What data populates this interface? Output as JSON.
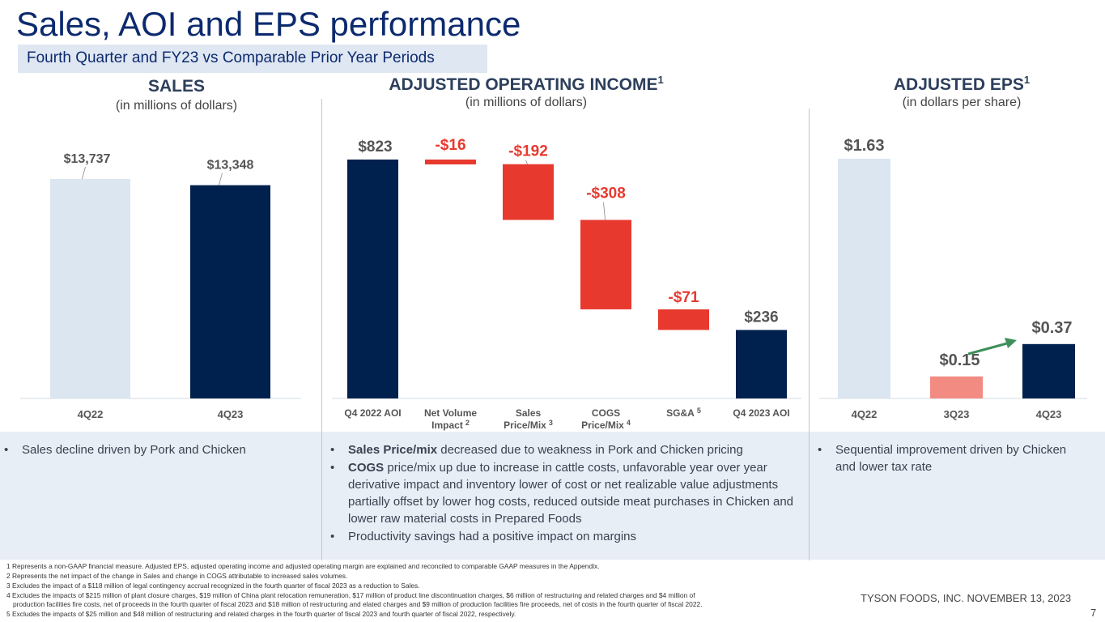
{
  "title": "Sales, AOI and EPS performance",
  "subtitle": "Fourth Quarter and FY23 vs Comparable Prior Year Periods",
  "colors": {
    "navy": "#00204e",
    "light_blue": "#dce6f1",
    "red": "#e8392f",
    "salmon": "#f28b82",
    "arrow_green": "#3f8f5a"
  },
  "panels": {
    "sales": {
      "heading": "SALES",
      "unit": "(in millions of dollars)"
    },
    "aoi": {
      "heading": "ADJUSTED OPERATING INCOME",
      "heading_sup": "1",
      "unit": "(in millions of dollars)"
    },
    "eps": {
      "heading": "ADJUSTED EPS",
      "heading_sup": "1",
      "unit": "(in dollars per share)"
    }
  },
  "chart_data": [
    {
      "type": "bar",
      "categories": [
        "4Q22",
        "4Q23"
      ],
      "values": [
        13737,
        13348
      ],
      "labels": [
        "$13,737",
        "$13,348"
      ],
      "colors": [
        "#dce6f1",
        "#00204e"
      ]
    },
    {
      "type": "waterfall",
      "categories": [
        {
          "line1": "Q4 2022 AOI",
          "line2": "",
          "sup": ""
        },
        {
          "line1": "Net Volume",
          "line2": "Impact",
          "sup": "2"
        },
        {
          "line1": "Sales",
          "line2": "Price/Mix",
          "sup": "3"
        },
        {
          "line1": "COGS",
          "line2": "Price/Mix",
          "sup": "4"
        },
        {
          "line1": "SG&A",
          "line2": "",
          "sup": "5"
        },
        {
          "line1": "Q4 2023 AOI",
          "line2": "",
          "sup": ""
        }
      ],
      "values": [
        823,
        -16,
        -192,
        -308,
        -71,
        236
      ],
      "labels": [
        "$823",
        "-$16",
        "-$192",
        "-$308",
        "-$71",
        "$236"
      ],
      "kinds": [
        "total",
        "delta",
        "delta",
        "delta",
        "delta",
        "total"
      ]
    },
    {
      "type": "bar",
      "categories": [
        "4Q22",
        "3Q23",
        "4Q23"
      ],
      "values": [
        1.63,
        0.15,
        0.37
      ],
      "labels": [
        "$1.63",
        "$0.15",
        "$0.37"
      ],
      "colors": [
        "#dce6f1",
        "#f28b82",
        "#00204e"
      ]
    }
  ],
  "bullets": {
    "sales": [
      {
        "bold": "",
        "text": "Sales decline driven by Pork and Chicken"
      }
    ],
    "aoi": [
      {
        "bold": "Sales Price/mix",
        "text": " decreased due to weakness in Pork and Chicken pricing"
      },
      {
        "bold": "COGS",
        "text": " price/mix up due to increase in cattle costs, unfavorable year over year derivative impact and inventory lower of cost or net realizable value adjustments partially offset by lower hog costs, reduced outside meat purchases in Chicken and lower raw material costs in Prepared Foods"
      },
      {
        "bold": "",
        "text": "Productivity savings had a positive impact on margins"
      }
    ],
    "eps": [
      {
        "bold": "",
        "text": "Sequential improvement driven by Chicken and lower tax rate"
      }
    ]
  },
  "bullet_symbol": "•",
  "footnotes": [
    "1 Represents a non-GAAP financial measure. Adjusted EPS, adjusted operating income and adjusted operating margin are explained and reconciled to comparable GAAP measures in the Appendix.",
    "2 Represents the net impact of the change in Sales and change in COGS attributable to increased sales volumes.",
    "3 Excludes the impact of a $118 million of legal contingency accrual recognized in the fourth quarter of fiscal 2023 as a reduction to Sales.",
    "4 Excludes the impacts of $215 million of plant closure charges, $19 million of China plant relocation remuneration, $17 million of product line discontinuation charges, $6 million of restructuring and related charges and $4 million of",
    "production facilities fire costs, net of proceeds in the fourth quarter of fiscal 2023 and $18 million of restructuring and elated charges and $9 million of production facilities fire proceeds, net of costs in the fourth quarter of fiscal 2022.",
    "5 Excludes the impacts of $25 million and $48 million of restructuring and related charges in the fourth quarter of fiscal 2023 and fourth quarter of fiscal 2022, respectively."
  ],
  "company": "TYSON FOODS, INC. NOVEMBER 13, 2023",
  "page_number": "7"
}
